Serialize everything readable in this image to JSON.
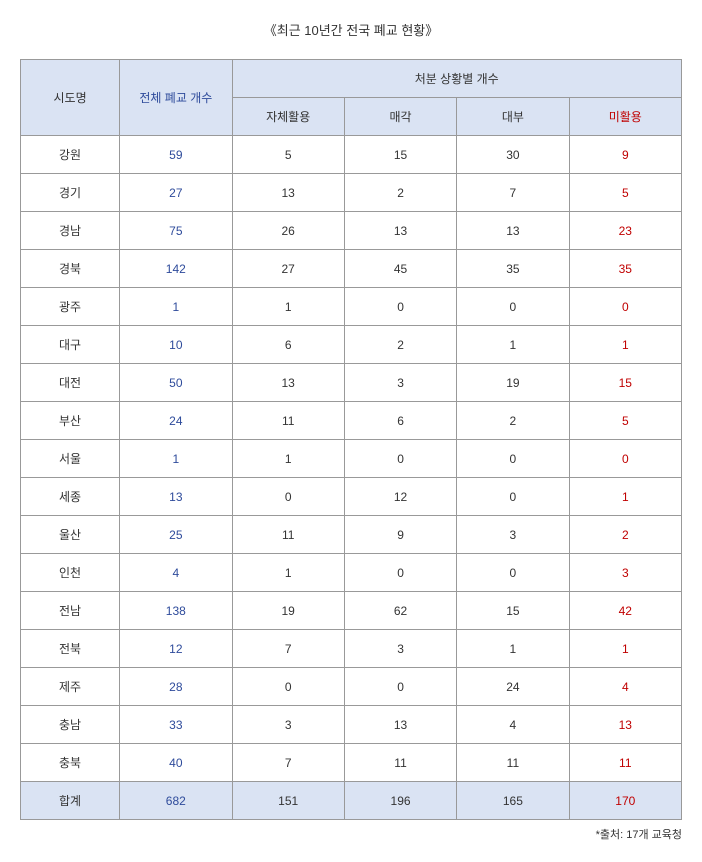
{
  "title": "《최근 10년간 전국 폐교 현황》",
  "headers": {
    "region": "시도명",
    "total": "전체 폐교 개수",
    "group": "처분 상황별 개수",
    "self_use": "자체활용",
    "sale": "매각",
    "lease": "대부",
    "unused": "미활용"
  },
  "rows": [
    {
      "region": "강원",
      "total": "59",
      "self_use": "5",
      "sale": "15",
      "lease": "30",
      "unused": "9"
    },
    {
      "region": "경기",
      "total": "27",
      "self_use": "13",
      "sale": "2",
      "lease": "7",
      "unused": "5"
    },
    {
      "region": "경남",
      "total": "75",
      "self_use": "26",
      "sale": "13",
      "lease": "13",
      "unused": "23"
    },
    {
      "region": "경북",
      "total": "142",
      "self_use": "27",
      "sale": "45",
      "lease": "35",
      "unused": "35"
    },
    {
      "region": "광주",
      "total": "1",
      "self_use": "1",
      "sale": "0",
      "lease": "0",
      "unused": "0"
    },
    {
      "region": "대구",
      "total": "10",
      "self_use": "6",
      "sale": "2",
      "lease": "1",
      "unused": "1"
    },
    {
      "region": "대전",
      "total": "50",
      "self_use": "13",
      "sale": "3",
      "lease": "19",
      "unused": "15"
    },
    {
      "region": "부산",
      "total": "24",
      "self_use": "11",
      "sale": "6",
      "lease": "2",
      "unused": "5"
    },
    {
      "region": "서울",
      "total": "1",
      "self_use": "1",
      "sale": "0",
      "lease": "0",
      "unused": "0"
    },
    {
      "region": "세종",
      "total": "13",
      "self_use": "0",
      "sale": "12",
      "lease": "0",
      "unused": "1"
    },
    {
      "region": "울산",
      "total": "25",
      "self_use": "11",
      "sale": "9",
      "lease": "3",
      "unused": "2"
    },
    {
      "region": "인천",
      "total": "4",
      "self_use": "1",
      "sale": "0",
      "lease": "0",
      "unused": "3"
    },
    {
      "region": "전남",
      "total": "138",
      "self_use": "19",
      "sale": "62",
      "lease": "15",
      "unused": "42"
    },
    {
      "region": "전북",
      "total": "12",
      "self_use": "7",
      "sale": "3",
      "lease": "1",
      "unused": "1"
    },
    {
      "region": "제주",
      "total": "28",
      "self_use": "0",
      "sale": "0",
      "lease": "24",
      "unused": "4"
    },
    {
      "region": "충남",
      "total": "33",
      "self_use": "3",
      "sale": "13",
      "lease": "4",
      "unused": "13"
    },
    {
      "region": "충북",
      "total": "40",
      "self_use": "7",
      "sale": "11",
      "lease": "11",
      "unused": "11"
    }
  ],
  "footer": {
    "region": "합계",
    "total": "682",
    "self_use": "151",
    "sale": "196",
    "lease": "165",
    "unused": "170"
  },
  "footnote": "*출처: 17개 교육청",
  "styles": {
    "header_bg": "#dae3f3",
    "border_color": "#999999",
    "text_color": "#333333",
    "blue_color": "#2e4b9b",
    "red_color": "#c00000",
    "col_widths_pct": [
      15,
      17,
      17,
      17,
      17,
      17
    ]
  }
}
